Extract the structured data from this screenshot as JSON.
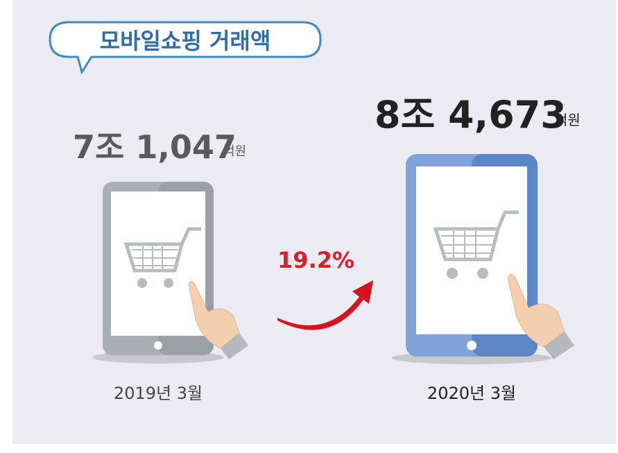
{
  "header": {
    "title": "모바일쇼핑 거래액"
  },
  "before": {
    "amount": "7조 1,047",
    "unit": "억원",
    "period": "2019년 3월"
  },
  "after": {
    "amount": "8조 4,673",
    "unit": "억원",
    "period": "2020년 3월"
  },
  "growth": "19.2%"
}
